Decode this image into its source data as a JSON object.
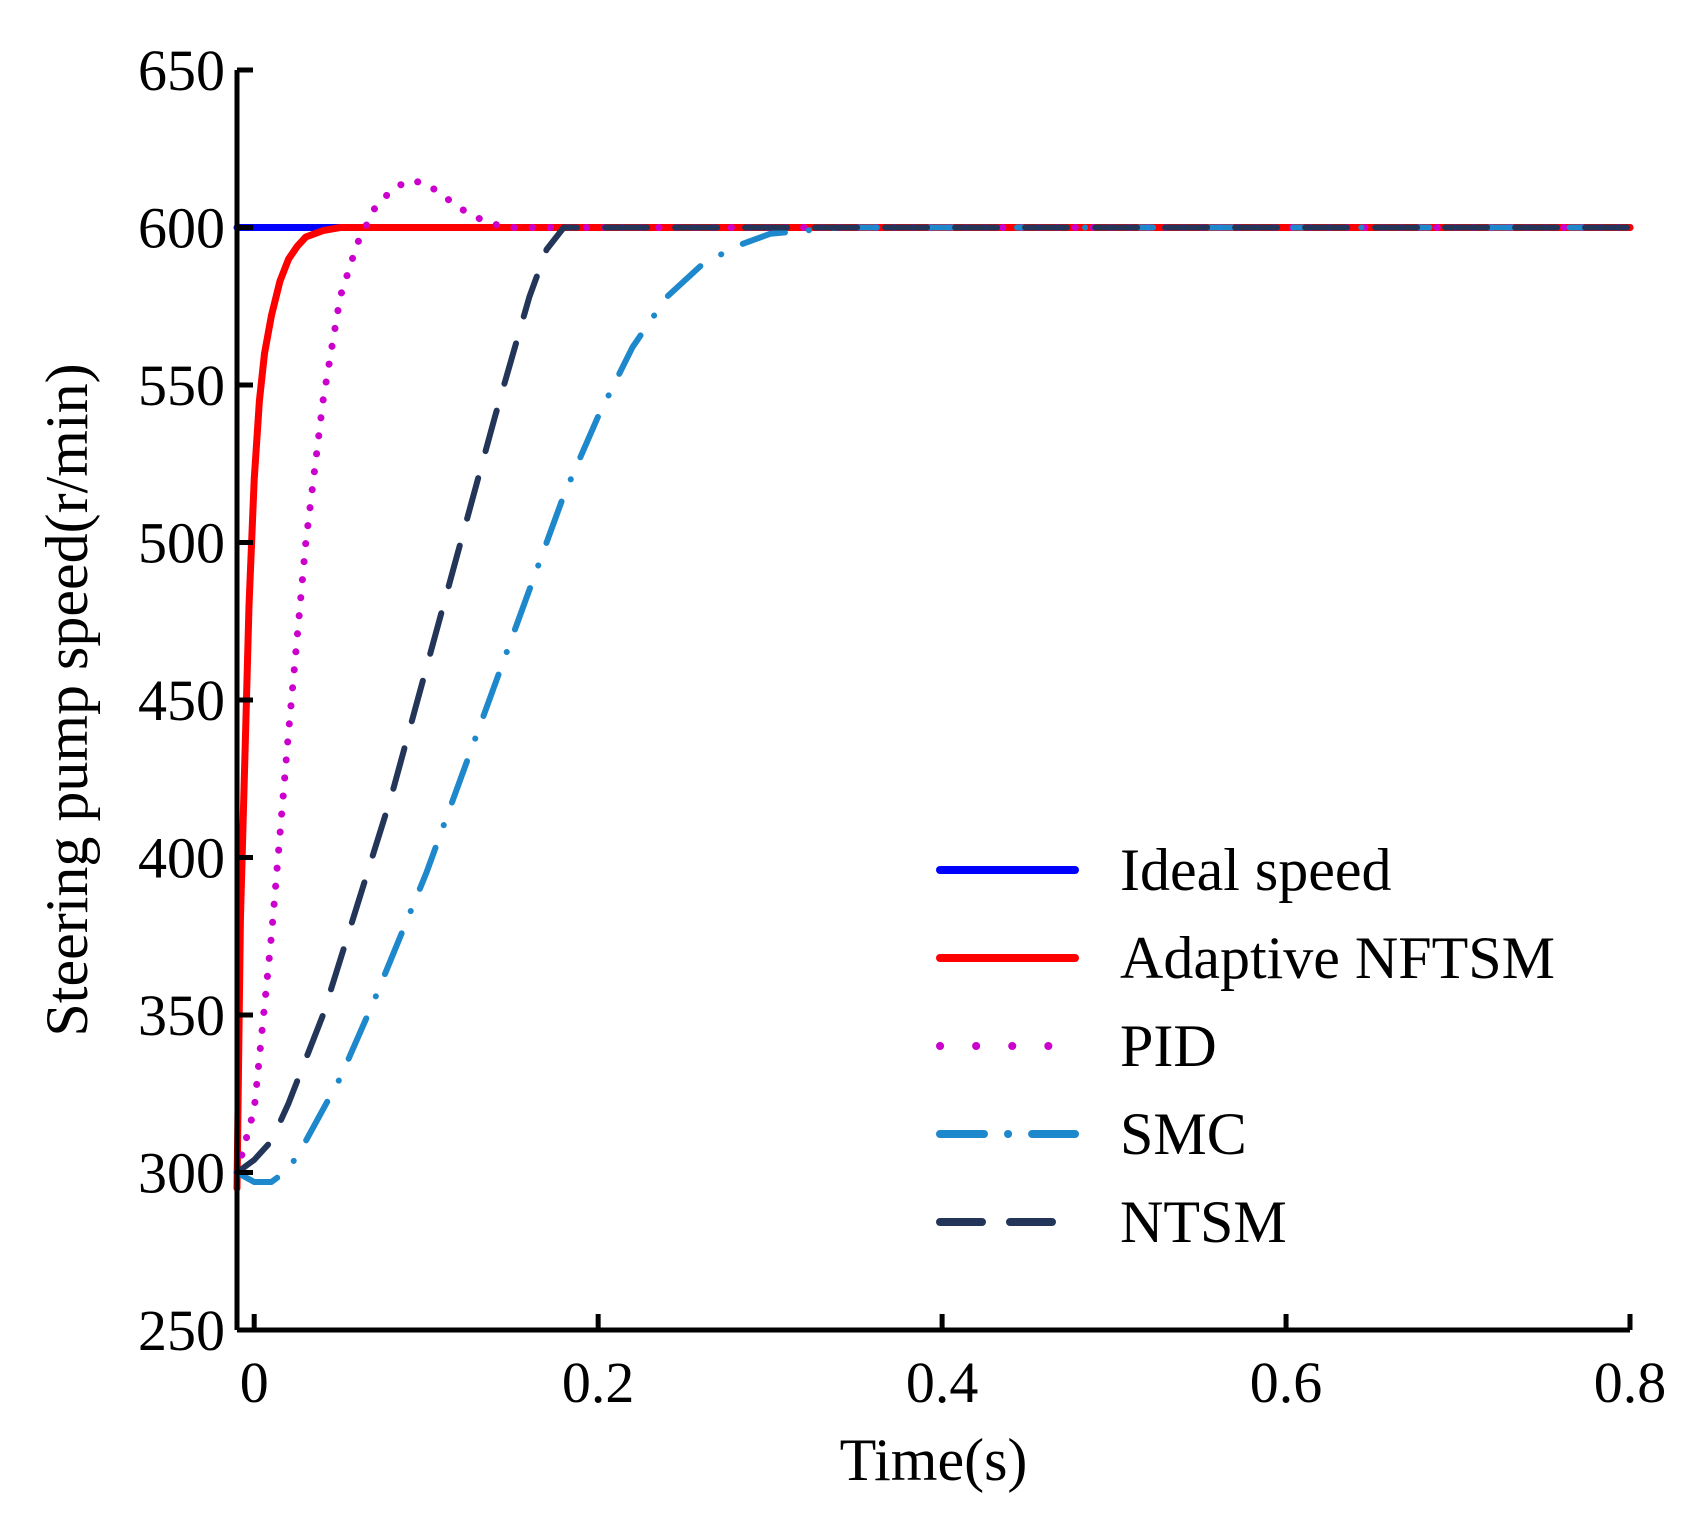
{
  "chart_data": {
    "type": "line",
    "title": "",
    "xlabel": "Time(s)",
    "ylabel": "Steering pump speed(r/min)",
    "xlim": [
      -0.01,
      0.8
    ],
    "ylim": [
      250,
      650
    ],
    "xticks": [
      0,
      0.2,
      0.4,
      0.6,
      0.8
    ],
    "xtick_labels": [
      "0",
      "0.2",
      "0.4",
      "0.6",
      "0.8"
    ],
    "yticks": [
      250,
      300,
      350,
      400,
      450,
      500,
      550,
      600,
      650
    ],
    "ytick_labels": [
      "250",
      "300",
      "350",
      "400",
      "450",
      "500",
      "550",
      "600",
      "650"
    ],
    "grid": false,
    "legend_position": "bottom-right",
    "series": [
      {
        "name": "Ideal speed",
        "color": "#0000ff",
        "style": "solid",
        "x": [
          -0.01,
          0.8
        ],
        "y": [
          600,
          600
        ]
      },
      {
        "name": "Adaptive NFTSM",
        "color": "#ff0000",
        "style": "solid",
        "x": [
          -0.01,
          -0.008,
          -0.005,
          -0.003,
          0.0,
          0.003,
          0.006,
          0.01,
          0.015,
          0.02,
          0.025,
          0.03,
          0.04,
          0.05,
          0.06,
          0.8
        ],
        "y": [
          295,
          380,
          440,
          480,
          520,
          545,
          560,
          572,
          583,
          590,
          594,
          597,
          599,
          600,
          600,
          600
        ]
      },
      {
        "name": "PID",
        "color": "#cc00cc",
        "style": "dotted",
        "x": [
          -0.01,
          0.0,
          0.01,
          0.02,
          0.03,
          0.04,
          0.05,
          0.06,
          0.07,
          0.08,
          0.09,
          0.1,
          0.11,
          0.12,
          0.13,
          0.14,
          0.15,
          0.16,
          0.17,
          0.18,
          0.8
        ],
        "y": [
          300,
          320,
          375,
          440,
          500,
          545,
          578,
          595,
          606,
          612,
          615,
          614,
          610,
          606,
          603,
          601,
          600,
          600,
          600,
          600,
          600
        ]
      },
      {
        "name": "SMC",
        "color": "#1e88cc",
        "style": "dashdot",
        "x": [
          -0.01,
          0.0,
          0.01,
          0.02,
          0.03,
          0.05,
          0.07,
          0.1,
          0.12,
          0.15,
          0.18,
          0.2,
          0.22,
          0.24,
          0.26,
          0.28,
          0.3,
          0.32,
          0.34,
          0.36,
          0.8
        ],
        "y": [
          300,
          297,
          297,
          301,
          310,
          330,
          355,
          395,
          425,
          470,
          515,
          540,
          562,
          578,
          588,
          594,
          598,
          599,
          600,
          600,
          600
        ]
      },
      {
        "name": "NTSM",
        "color": "#233659",
        "style": "dashed",
        "x": [
          -0.01,
          0.0,
          0.01,
          0.02,
          0.04,
          0.06,
          0.08,
          0.1,
          0.12,
          0.14,
          0.16,
          0.17,
          0.18,
          0.8
        ],
        "y": [
          300,
          304,
          310,
          322,
          350,
          385,
          420,
          460,
          500,
          540,
          578,
          593,
          600,
          600
        ]
      }
    ]
  }
}
